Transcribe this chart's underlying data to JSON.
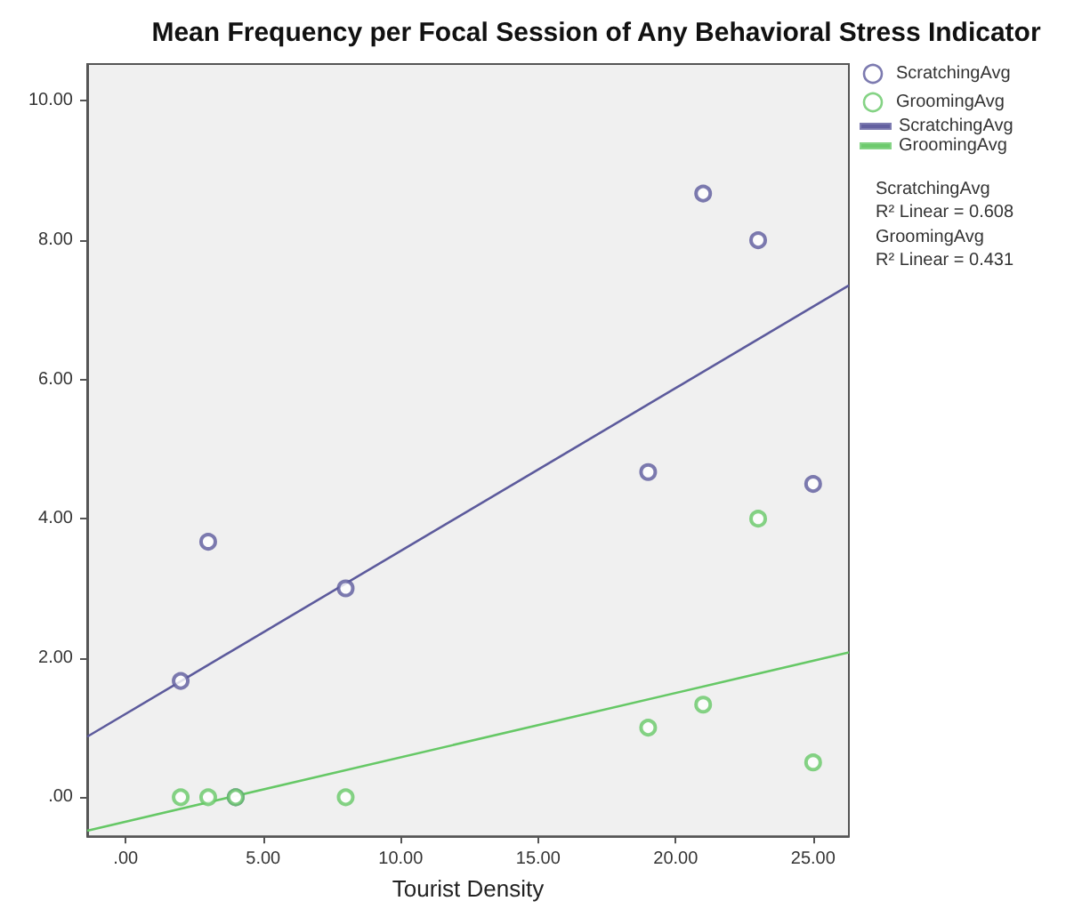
{
  "chart_data": {
    "type": "scatter",
    "title": "Mean Frequency per Focal Session of Any Behavioral Stress Indicator",
    "xlabel": "Tourist Density",
    "series": [
      {
        "name": "ScratchingAvg",
        "color": "#5c5a9c",
        "x": [
          2,
          3,
          4,
          8,
          19,
          21,
          23,
          25
        ],
        "values": [
          1.67,
          3.67,
          0,
          3,
          4.67,
          8.67,
          8,
          4.5
        ]
      },
      {
        "name": "GroomingAvg",
        "color": "#66c866",
        "x": [
          2,
          3,
          4,
          8,
          19,
          21,
          23,
          25
        ],
        "values": [
          0,
          0,
          0,
          0,
          1,
          1.33,
          4,
          0.5
        ]
      },
      {
        "name": "ScratchingAvg",
        "type": "line",
        "marker": "none",
        "color": "#5c5a9c",
        "x": [
          -1.4,
          26.3
        ],
        "values": [
          0.87,
          7.35
        ]
      },
      {
        "name": "GroomingAvg",
        "type": "line",
        "marker": "none",
        "color": "#66c866",
        "x": [
          -1.4,
          26.3
        ],
        "values": [
          -0.48,
          2.08
        ]
      }
    ],
    "xlim": [
      -1.4,
      26.3
    ],
    "xticks": [
      {
        "value": 0,
        "label": ".00"
      },
      {
        "value": 5,
        "label": "5.00"
      },
      {
        "value": 10,
        "label": "10.00"
      },
      {
        "value": 15,
        "label": "15.00"
      },
      {
        "value": 20,
        "label": "20.00"
      },
      {
        "value": 25,
        "label": "25.00"
      }
    ],
    "ylim": [
      -0.56,
      10.53
    ],
    "yticks": [
      {
        "value": 0,
        "label": ".00"
      },
      {
        "value": 2,
        "label": "2.00"
      },
      {
        "value": 4,
        "label": "4.00"
      },
      {
        "value": 6,
        "label": "6.00"
      },
      {
        "value": 8,
        "label": "8.00"
      },
      {
        "value": 10,
        "label": "10.00"
      }
    ],
    "annotations": [
      "ScratchingAvg\nR² Linear = 0.608",
      "GroomingAvg\nR² Linear = 0.431"
    ],
    "grid": false,
    "legend": "top right",
    "marker": "circle",
    "line_style": "solid"
  }
}
